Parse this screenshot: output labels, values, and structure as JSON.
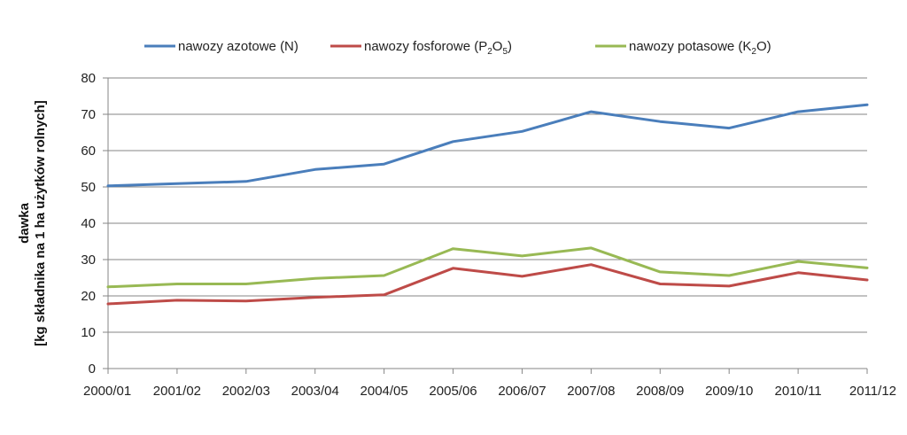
{
  "chart_data": {
    "type": "line",
    "title": "",
    "xlabel": "",
    "ylabel_line1": "dawka",
    "ylabel_line2": "[kg składnika na 1 ha użytków rolnych]",
    "ylim": [
      0,
      80
    ],
    "yticks": [
      0,
      10,
      20,
      30,
      40,
      50,
      60,
      70,
      80
    ],
    "grid": true,
    "legend_position": "top",
    "categories": [
      "2000/01",
      "2001/02",
      "2002/03",
      "2003/04",
      "2004/05",
      "2005/06",
      "2006/07",
      "2007/08",
      "2008/09",
      "2009/10",
      "2010/11",
      "2011/12"
    ],
    "series": [
      {
        "name": "nawozy azotowe (N)",
        "legend_parts": [
          {
            "t": "nawozy azotowe (N)",
            "sub": false
          }
        ],
        "color": "#4a7ebb",
        "values": [
          50.3,
          50.9,
          51.5,
          54.8,
          56.3,
          62.5,
          65.3,
          70.7,
          68.0,
          66.2,
          70.7,
          72.6
        ]
      },
      {
        "name": "nawozy fosforowe (P2O5)",
        "legend_parts": [
          {
            "t": "nawozy fosforowe (P",
            "sub": false
          },
          {
            "t": "2",
            "sub": true
          },
          {
            "t": "O",
            "sub": false
          },
          {
            "t": "5",
            "sub": true
          },
          {
            "t": ")",
            "sub": false
          }
        ],
        "color": "#be4b48",
        "values": [
          17.8,
          18.8,
          18.6,
          19.6,
          20.3,
          27.6,
          25.4,
          28.6,
          23.3,
          22.7,
          26.4,
          24.4
        ]
      },
      {
        "name": "nawozy potasowe (K2O)",
        "legend_parts": [
          {
            "t": "nawozy potasowe (K",
            "sub": false
          },
          {
            "t": "2",
            "sub": true
          },
          {
            "t": "O)",
            "sub": false
          }
        ],
        "color": "#98b954",
        "values": [
          22.5,
          23.3,
          23.3,
          24.8,
          25.6,
          33.0,
          31.0,
          33.2,
          26.6,
          25.6,
          29.5,
          27.7
        ]
      }
    ]
  }
}
